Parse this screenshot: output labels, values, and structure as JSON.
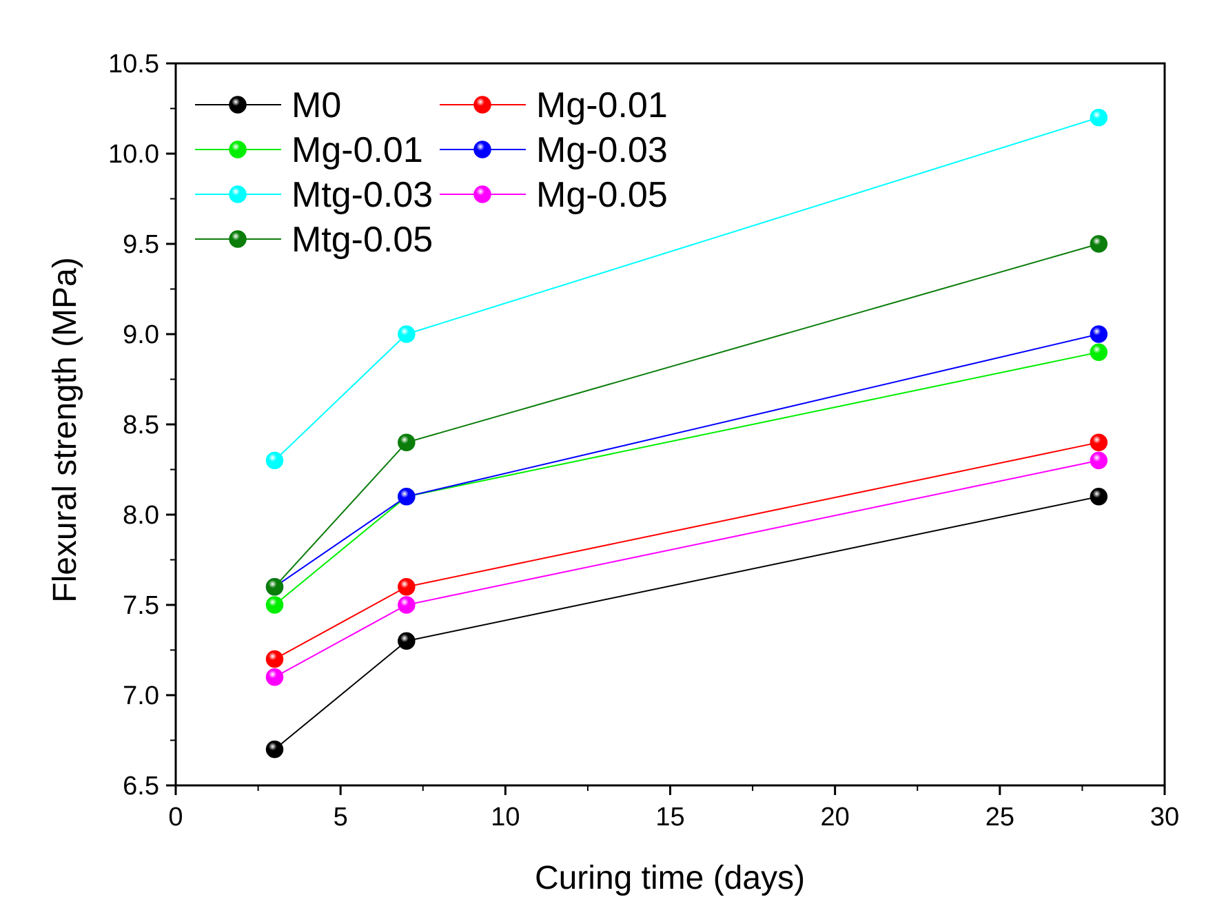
{
  "chart_data": {
    "type": "line",
    "title": "",
    "xlabel": "Curing time (days)",
    "ylabel": "Flexural strength (MPa)",
    "xlim": [
      0,
      30
    ],
    "ylim": [
      6.5,
      10.5
    ],
    "x_ticks": [
      "0",
      "5",
      "10",
      "15",
      "20",
      "25",
      "30"
    ],
    "y_ticks": [
      "6.5",
      "7.0",
      "7.5",
      "8.0",
      "8.5",
      "9.0",
      "9.5",
      "10.0",
      "10.5"
    ],
    "grid": false,
    "legend_position": "top-left",
    "x": [
      3,
      7,
      28
    ],
    "series": [
      {
        "name": "M0",
        "color": "#000000",
        "values": [
          6.7,
          7.3,
          8.1
        ]
      },
      {
        "name": "Mg-0.01",
        "color": "#ff0000",
        "values": [
          7.2,
          7.6,
          8.4
        ]
      },
      {
        "name": "Mg-0.01",
        "color": "#00ee00",
        "values": [
          7.5,
          8.1,
          8.9
        ]
      },
      {
        "name": "Mg-0.03",
        "color": "#0000ff",
        "values": [
          7.6,
          8.1,
          9.0
        ]
      },
      {
        "name": "Mtg-0.03",
        "color": "#00ffff",
        "values": [
          8.3,
          9.0,
          10.2
        ]
      },
      {
        "name": "Mg-0.05",
        "color": "#ff00ff",
        "values": [
          7.1,
          7.5,
          8.3
        ]
      },
      {
        "name": "Mtg-0.05",
        "color": "#0a7d0a",
        "values": [
          7.6,
          8.4,
          9.5
        ]
      }
    ]
  }
}
